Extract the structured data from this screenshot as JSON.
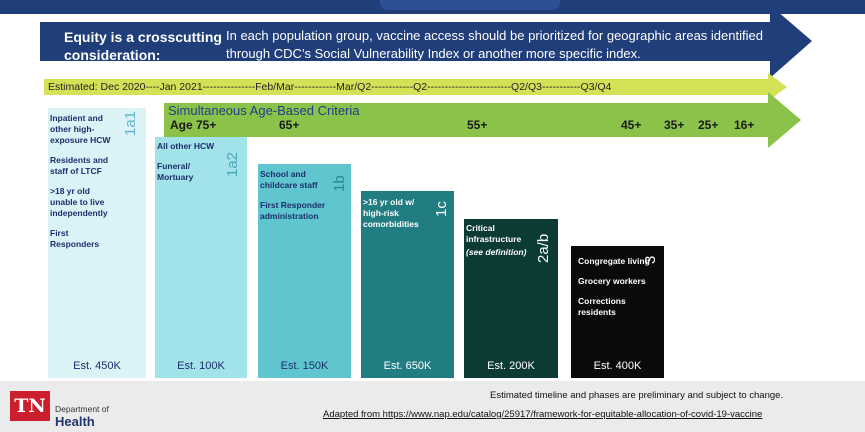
{
  "equity": {
    "label": "Equity is a crosscutting consideration:",
    "text": "In each population group, vaccine access should be prioritized for geographic areas identified through CDC’s Social Vulnerability Index or another more specific index."
  },
  "timeline": {
    "text": "Estimated: Dec 2020----Jan 2021---------------Feb/Mar------------Mar/Q2------------Q2------------------------Q2/Q3-----------Q3/Q4"
  },
  "age_criteria": {
    "label": "Simultaneous  Age-Based  Criteria",
    "ages": [
      "Age 75+",
      "65+",
      "55+",
      "45+",
      "35+",
      "25+",
      "16+"
    ]
  },
  "phases": [
    {
      "code": "1a1",
      "items": [
        "Inpatient and other high-exposure HCW",
        "Residents and staff of LTCF",
        ">18 yr old unable to live independently",
        "First Responders"
      ],
      "estimate": "Est. 450K",
      "color": "#dbf3f7",
      "text_color": "#1c2f6d",
      "code_color": "#5eb6c8"
    },
    {
      "code": "1a2",
      "items": [
        "All other HCW",
        "Funeral/ Mortuary"
      ],
      "estimate": "Est. 100K",
      "color": "#a2e2e9",
      "text_color": "#1c2f6d",
      "code_color": "#4aa6b6"
    },
    {
      "code": "1b",
      "items": [
        "School and childcare staff",
        "First Responder administration"
      ],
      "estimate": "Est. 150K",
      "color": "#5fc6cf",
      "text_color": "#1c2f6d",
      "code_color": "#2a8a98"
    },
    {
      "code": "1c",
      "items": [
        ">16 yr old w/ high-risk comorbidities"
      ],
      "estimate": "Est. 650K",
      "color": "#227d82",
      "text_color": "#ffffff",
      "code_color": "#ffffff"
    },
    {
      "code": "2a/b",
      "items": [
        "Critical infrastructure",
        "(see definition)"
      ],
      "estimate": "Est. 200K",
      "color": "#0c3b35",
      "text_color": "#ffffff",
      "code_color": "#ffffff"
    },
    {
      "code": "3",
      "items": [
        "Congregate living",
        "Grocery workers",
        "Corrections residents"
      ],
      "estimate": "Est. 400K",
      "color": "#0a0a0a",
      "text_color": "#ffffff",
      "code_color": "#ffffff"
    }
  ],
  "footer": {
    "note": "Estimated timeline and phases are preliminary and subject to change.",
    "link": "Adapted from https://www.nap.edu/catalog/25917/framework-for-equitable-allocation-of-covid-19-vaccine",
    "logo_tn": "TN",
    "logo_line1": "Department of",
    "logo_line2": "Health"
  },
  "colors": {
    "navy": "#1f3e7a",
    "timeline_yellow": "#d4e157",
    "age_green": "#8bc34a"
  }
}
